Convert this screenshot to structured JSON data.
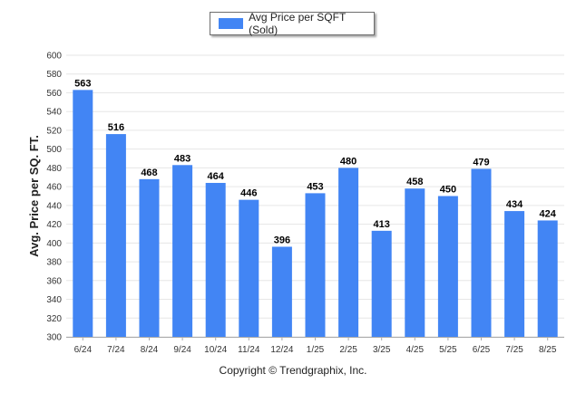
{
  "chart_data": {
    "type": "bar",
    "categories": [
      "6/24",
      "7/24",
      "8/24",
      "9/24",
      "10/24",
      "11/24",
      "12/24",
      "1/25",
      "2/25",
      "3/25",
      "4/25",
      "5/25",
      "6/25",
      "7/25",
      "8/25"
    ],
    "series": [
      {
        "name": "Avg Price per SQFT (Sold)",
        "values": [
          563,
          516,
          468,
          483,
          464,
          446,
          396,
          453,
          480,
          413,
          458,
          450,
          479,
          434,
          424
        ]
      }
    ],
    "ylabel": "Avg. Price per SQ. FT.",
    "xlabel": "",
    "ylim": [
      300,
      600
    ],
    "yticks": [
      300,
      320,
      340,
      360,
      380,
      400,
      420,
      440,
      460,
      480,
      500,
      520,
      540,
      560,
      580,
      600
    ],
    "grid": true,
    "legend_position": "top-center",
    "colors": {
      "bar": "#4285f4",
      "grid": "#e6e6e6",
      "axis": "#aaaaaa"
    }
  },
  "footer": {
    "copyright": "Copyright © Trendgraphix, Inc."
  }
}
